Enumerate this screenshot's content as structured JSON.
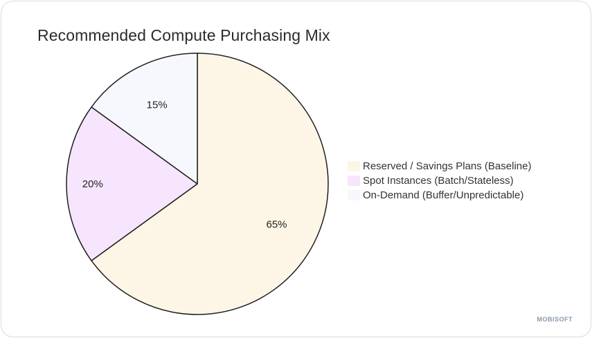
{
  "chart_data": {
    "type": "pie",
    "title": "Recommended Compute Purchasing Mix",
    "categories": [
      "Reserved / Savings Plans (Baseline)",
      "Spot Instances (Batch/Stateless)",
      "On-Demand (Buffer/Unpredictable)"
    ],
    "values": [
      65,
      20,
      15
    ],
    "data_labels": [
      "65%",
      "20%",
      "15%"
    ],
    "colors": [
      "#fdf6e6",
      "#f6e5fc",
      "#f7f8fe"
    ],
    "legend_position": "right",
    "start_angle": "12 o'clock",
    "direction": "clockwise"
  },
  "branding": {
    "watermark": "MOBISOFT"
  }
}
